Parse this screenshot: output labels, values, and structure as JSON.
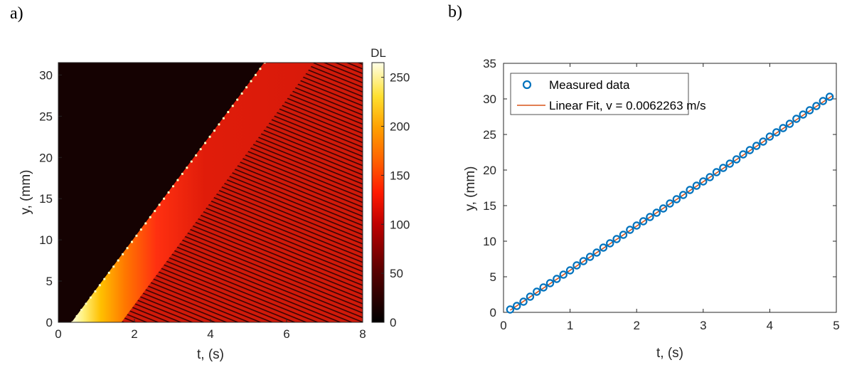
{
  "panels": {
    "a": "a)",
    "b": "b)"
  },
  "chart_data": [
    {
      "type": "heatmap",
      "xlabel": "t, (s)",
      "ylabel": "y, (mm)",
      "xlim": [
        0,
        8
      ],
      "ylim": [
        0,
        31.5
      ],
      "xticks": [
        "0",
        "2",
        "4",
        "6",
        "8"
      ],
      "yticks": [
        "0",
        "5",
        "10",
        "15",
        "20",
        "25",
        "30"
      ],
      "colorbar": {
        "title": "DL",
        "range": [
          0,
          265
        ],
        "ticks": [
          "0",
          "50",
          "100",
          "150",
          "200",
          "250"
        ]
      },
      "front": {
        "t_start": 0.35,
        "y_start": 0,
        "velocity_mm_per_s": 6.2263
      },
      "colors": {
        "background": "#150202",
        "field": "#d81a0a",
        "front": "#ffffc0"
      }
    },
    {
      "type": "scatter",
      "xlabel": "t, (s)",
      "ylabel": "y, (mm)",
      "xlim": [
        0,
        5
      ],
      "ylim": [
        0,
        35
      ],
      "xticks": [
        "0",
        "1",
        "2",
        "3",
        "4",
        "5"
      ],
      "yticks": [
        "0",
        "5",
        "10",
        "15",
        "20",
        "25",
        "30",
        "35"
      ],
      "legend_position": "top-left",
      "series": [
        {
          "name": "Measured data",
          "kind": "scatter",
          "color": "#0072bd",
          "x": [
            0.1,
            0.2,
            0.3,
            0.4,
            0.5,
            0.6,
            0.7,
            0.8,
            0.9,
            1.0,
            1.1,
            1.2,
            1.3,
            1.4,
            1.5,
            1.6,
            1.7,
            1.8,
            1.9,
            2.0,
            2.1,
            2.2,
            2.3,
            2.4,
            2.5,
            2.6,
            2.7,
            2.8,
            2.9,
            3.0,
            3.1,
            3.2,
            3.3,
            3.4,
            3.5,
            3.6,
            3.7,
            3.8,
            3.9,
            4.0,
            4.1,
            4.2,
            4.3,
            4.4,
            4.5,
            4.6,
            4.7,
            4.8,
            4.9
          ],
          "y": [
            0.4,
            0.9,
            1.5,
            2.2,
            2.9,
            3.5,
            4.1,
            4.7,
            5.3,
            5.9,
            6.6,
            7.2,
            7.8,
            8.4,
            9.1,
            9.7,
            10.3,
            10.9,
            11.6,
            12.2,
            12.8,
            13.4,
            14.0,
            14.6,
            15.3,
            15.9,
            16.5,
            17.2,
            17.8,
            18.4,
            19.0,
            19.7,
            20.3,
            20.9,
            21.5,
            22.2,
            22.8,
            23.4,
            24.0,
            24.7,
            25.3,
            25.9,
            26.5,
            27.2,
            27.8,
            28.4,
            29.0,
            29.7,
            30.3
          ]
        },
        {
          "name": "Linear Fit, v = 0.0062263 m/s",
          "kind": "line",
          "color": "#d95319",
          "x": [
            0.1,
            4.95
          ],
          "y": [
            0.3,
            30.5
          ]
        }
      ]
    }
  ]
}
